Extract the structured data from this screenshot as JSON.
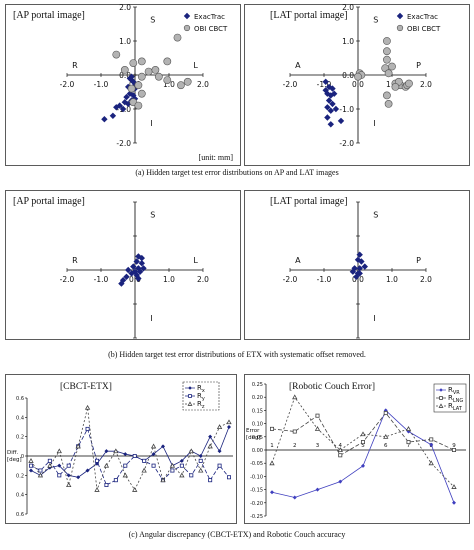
{
  "captions": {
    "a": "(a)  Hidden target test error distributions on AP and LAT images",
    "b": "(b)  Hidden target test error distributions of ETX with systematic offset removed.",
    "c": "(c) Angular discrepancy (CBCT-ETX) and Robotic Couch accuracy"
  },
  "chart_data": [
    {
      "type": "scatter",
      "title": "[AP portal image]",
      "unit_note": "[unit: mm]",
      "xlim": [
        -2,
        2
      ],
      "ylim": [
        -2,
        2
      ],
      "x_ticks": [
        "-2.0",
        "-1.0",
        "0.0",
        "1.0",
        "2.0"
      ],
      "y_ticks": [
        "2.0",
        "1.0",
        "0.0",
        "-1.0",
        "-2.0"
      ],
      "direction_labels": {
        "left": "R",
        "right": "L",
        "top": "S",
        "bottom": "I"
      },
      "legend": [
        "ExacTrac",
        "OBI CBCT"
      ],
      "series": [
        {
          "name": "ExacTrac",
          "marker": "diamond",
          "color": "#1a237e",
          "points": [
            [
              -0.15,
              -0.1
            ],
            [
              -0.1,
              -0.15
            ],
            [
              -0.05,
              -0.2
            ],
            [
              0.0,
              -0.3
            ],
            [
              -0.2,
              -0.35
            ],
            [
              -0.1,
              -0.45
            ],
            [
              0.0,
              -0.4
            ],
            [
              -0.15,
              -0.55
            ],
            [
              -0.05,
              -0.6
            ],
            [
              -0.25,
              -0.65
            ],
            [
              -0.1,
              -0.75
            ],
            [
              0.0,
              -0.7
            ],
            [
              -0.3,
              -0.8
            ],
            [
              -0.2,
              -0.85
            ],
            [
              -0.45,
              -0.9
            ],
            [
              -0.55,
              -0.95
            ],
            [
              -0.35,
              -1.0
            ],
            [
              -0.65,
              -1.2
            ],
            [
              -0.9,
              -1.3
            ],
            [
              -0.1,
              -0.05
            ]
          ]
        },
        {
          "name": "OBI CBCT",
          "marker": "circle",
          "color": "#b3b3b3",
          "points": [
            [
              -0.55,
              0.6
            ],
            [
              -0.3,
              0.15
            ],
            [
              -0.05,
              0.35
            ],
            [
              0.2,
              0.4
            ],
            [
              0.4,
              0.1
            ],
            [
              0.6,
              0.15
            ],
            [
              1.25,
              1.1
            ],
            [
              0.95,
              0.4
            ],
            [
              0.7,
              -0.05
            ],
            [
              0.95,
              -0.15
            ],
            [
              1.35,
              -0.3
            ],
            [
              1.55,
              -0.2
            ],
            [
              0.2,
              -0.05
            ],
            [
              0.1,
              -0.3
            ],
            [
              -0.1,
              -0.4
            ],
            [
              0.2,
              -0.55
            ],
            [
              -0.05,
              -0.8
            ],
            [
              0.1,
              -0.9
            ]
          ]
        }
      ]
    },
    {
      "type": "scatter",
      "title": "[LAT portal image]",
      "xlim": [
        -2,
        2
      ],
      "ylim": [
        -2,
        2
      ],
      "x_ticks": [
        "-2.0",
        "-1.0",
        "0.0",
        "1.0",
        "2.0"
      ],
      "y_ticks": [
        "2.0",
        "1.0",
        "0.0",
        "-1.0",
        "-2.0"
      ],
      "direction_labels": {
        "left": "A",
        "right": "P",
        "top": "S",
        "bottom": "I"
      },
      "legend": [
        "ExacTrac",
        "OBI CBCT"
      ],
      "series": [
        {
          "name": "ExacTrac",
          "marker": "diamond",
          "color": "#1a237e",
          "points": [
            [
              -0.95,
              -0.2
            ],
            [
              -0.85,
              -0.35
            ],
            [
              -0.95,
              -0.45
            ],
            [
              -0.75,
              -0.4
            ],
            [
              -0.9,
              -0.55
            ],
            [
              -0.8,
              -0.6
            ],
            [
              -0.7,
              -0.55
            ],
            [
              -0.85,
              -0.75
            ],
            [
              -0.75,
              -0.85
            ],
            [
              -0.9,
              -0.95
            ],
            [
              -0.65,
              -1.0
            ],
            [
              -0.8,
              -1.05
            ],
            [
              -0.9,
              -1.25
            ],
            [
              -0.8,
              -1.45
            ],
            [
              -0.5,
              -1.35
            ]
          ]
        },
        {
          "name": "OBI CBCT",
          "marker": "circle",
          "color": "#b3b3b3",
          "points": [
            [
              0.85,
              1.0
            ],
            [
              0.85,
              0.7
            ],
            [
              0.85,
              0.45
            ],
            [
              0.8,
              0.2
            ],
            [
              1.0,
              0.25
            ],
            [
              0.9,
              0.05
            ],
            [
              0.05,
              0.05
            ],
            [
              0.1,
              0.0
            ],
            [
              0.0,
              -0.05
            ],
            [
              1.1,
              -0.25
            ],
            [
              1.25,
              -0.3
            ],
            [
              1.4,
              -0.35
            ],
            [
              1.45,
              -0.3
            ],
            [
              1.5,
              -0.25
            ],
            [
              1.2,
              -0.2
            ],
            [
              1.1,
              -0.35
            ],
            [
              0.85,
              -0.6
            ],
            [
              0.9,
              -0.85
            ]
          ]
        }
      ]
    },
    {
      "type": "scatter",
      "title": "[AP portal image]",
      "xlim": [
        -2,
        2
      ],
      "ylim": [
        -2,
        2
      ],
      "x_ticks": [
        "-2.0",
        "-1.0",
        "0.0",
        "1.0",
        "2.0"
      ],
      "direction_labels": {
        "left": "R",
        "right": "L",
        "top": "S",
        "bottom": "I"
      },
      "series": [
        {
          "name": "ExacTrac",
          "marker": "diamond",
          "color": "#1a237e",
          "points": [
            [
              0.1,
              0.4
            ],
            [
              0.2,
              0.35
            ],
            [
              0.05,
              0.25
            ],
            [
              0.2,
              0.2
            ],
            [
              -0.05,
              0.1
            ],
            [
              0.1,
              0.05
            ],
            [
              0.25,
              0.05
            ],
            [
              -0.2,
              0.0
            ],
            [
              0.0,
              -0.05
            ],
            [
              0.15,
              -0.05
            ],
            [
              -0.1,
              -0.1
            ],
            [
              0.05,
              -0.15
            ],
            [
              -0.25,
              -0.2
            ],
            [
              0.1,
              -0.25
            ],
            [
              -0.35,
              -0.3
            ],
            [
              -0.4,
              -0.4
            ]
          ]
        }
      ]
    },
    {
      "type": "scatter",
      "title": "[LAT portal image]",
      "xlim": [
        -2,
        2
      ],
      "ylim": [
        -2,
        2
      ],
      "x_ticks": [
        "-2.0",
        "-1.0",
        "0.0",
        "1.0",
        "2.0"
      ],
      "direction_labels": {
        "left": "A",
        "right": "P",
        "top": "S",
        "bottom": "I"
      },
      "series": [
        {
          "name": "ExacTrac",
          "marker": "diamond",
          "color": "#1a237e",
          "points": [
            [
              0.05,
              0.45
            ],
            [
              0.0,
              0.3
            ],
            [
              0.1,
              0.25
            ],
            [
              0.2,
              0.1
            ],
            [
              0.05,
              0.05
            ],
            [
              -0.1,
              0.05
            ],
            [
              -0.15,
              -0.05
            ],
            [
              0.05,
              -0.1
            ],
            [
              -0.05,
              -0.2
            ],
            [
              0.0,
              -0.1
            ]
          ]
        }
      ]
    },
    {
      "type": "line",
      "title": "[CBCT-ETX]",
      "ylabel": "Diff. [deg]",
      "ylim": [
        -0.6,
        0.6
      ],
      "y_ticks": [
        "0.6",
        "0.4",
        "0.2",
        "0",
        "0.2",
        "0.4",
        "0.6"
      ],
      "legend": [
        "R_x",
        "R_y",
        "R_z"
      ],
      "x": [
        1,
        2,
        3,
        4,
        5,
        6,
        7,
        8,
        9,
        10,
        11,
        12,
        13,
        14,
        15,
        16,
        17,
        18,
        19,
        20,
        21,
        22
      ],
      "series": [
        {
          "name": "R_x",
          "marker": "diamond",
          "dash": "none",
          "color": "#1a237e",
          "values": [
            -0.15,
            -0.2,
            -0.12,
            -0.1,
            -0.2,
            -0.22,
            -0.15,
            -0.08,
            0.05,
            0.05,
            0.02,
            0.0,
            -0.05,
            0.02,
            0.1,
            -0.1,
            -0.05,
            0.05,
            0.0,
            0.2,
            0.05,
            0.3
          ]
        },
        {
          "name": "R_y",
          "marker": "square",
          "dash": "4,2",
          "color": "#1a237e",
          "values": [
            -0.1,
            -0.15,
            -0.05,
            -0.2,
            -0.1,
            0.1,
            0.28,
            -0.05,
            -0.3,
            -0.25,
            -0.1,
            0.0,
            -0.05,
            -0.1,
            -0.25,
            -0.15,
            -0.1,
            -0.2,
            -0.05,
            -0.25,
            -0.1,
            -0.22
          ]
        },
        {
          "name": "R_z",
          "marker": "triangle",
          "dash": "2,2",
          "color": "#444444",
          "values": [
            -0.05,
            -0.2,
            -0.1,
            0.05,
            -0.3,
            0.1,
            0.5,
            -0.35,
            -0.1,
            0.05,
            -0.2,
            -0.35,
            -0.15,
            0.1,
            -0.25,
            -0.1,
            -0.2,
            0.05,
            -0.15,
            0.1,
            0.3,
            0.35
          ]
        }
      ]
    },
    {
      "type": "line",
      "title": "[Robotic Couch Error]",
      "ylabel": "Error [deg]",
      "ylim": [
        -0.25,
        0.25
      ],
      "y_ticks": [
        "0.25",
        "0.20",
        "0.15",
        "0.10",
        "0.05",
        "0.00",
        "-0.05",
        "-0.10",
        "-0.15",
        "-0.20",
        "-0.25"
      ],
      "x_ticks": [
        "1",
        "2",
        "3",
        "4",
        "5",
        "6",
        "7",
        "8",
        "9"
      ],
      "legend": [
        "R_VR",
        "R_LNG",
        "R_LAT"
      ],
      "x": [
        1,
        2,
        3,
        4,
        5,
        6,
        7,
        8,
        9
      ],
      "series": [
        {
          "name": "R_VR",
          "marker": "diamond",
          "dash": "none",
          "color": "#3f3fbf",
          "values": [
            -0.16,
            -0.18,
            -0.15,
            -0.12,
            -0.06,
            0.15,
            0.07,
            0.02,
            -0.2
          ]
        },
        {
          "name": "R_LNG",
          "marker": "square",
          "dash": "4,2",
          "color": "#444444",
          "values": [
            0.08,
            0.07,
            0.13,
            -0.02,
            0.03,
            0.14,
            0.03,
            0.04,
            0.0
          ]
        },
        {
          "name": "R_LAT",
          "marker": "triangle",
          "dash": "2,2",
          "color": "#444444",
          "values": [
            -0.05,
            0.2,
            0.08,
            0.0,
            0.06,
            0.05,
            0.08,
            -0.05,
            -0.14
          ]
        }
      ]
    }
  ]
}
